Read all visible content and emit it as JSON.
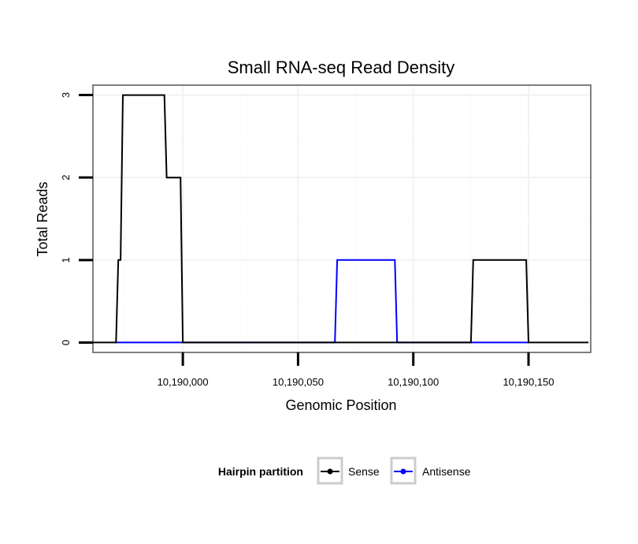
{
  "chart_data": {
    "type": "line",
    "title": "Small RNA-seq Read Density",
    "xlabel": "Genomic Position",
    "ylabel": "Total Reads",
    "xlim": [
      10189961,
      10190177
    ],
    "ylim": [
      -0.12,
      3.12
    ],
    "x_ticks": [
      10190000,
      10190050,
      10190100,
      10190150
    ],
    "x_tick_labels": [
      "10,190,000",
      "10,190,050",
      "10,190,100",
      "10,190,150"
    ],
    "y_ticks": [
      0,
      1,
      2,
      3
    ],
    "y_tick_labels": [
      "0",
      "1",
      "2",
      "3"
    ],
    "grid": true,
    "legend": {
      "title": "Hairpin partition",
      "placement": "bottom",
      "entries": [
        "Sense",
        "Antisense"
      ]
    },
    "series": [
      {
        "name": "Sense",
        "color": "#000000",
        "x": [
          10189961,
          10189971,
          10189972,
          10189973,
          10189974,
          10189992,
          10189993,
          10189999,
          10190000,
          10190125,
          10190126,
          10190149,
          10190150,
          10190176
        ],
        "values": [
          0,
          0,
          1,
          1,
          3,
          3,
          2,
          2,
          0,
          0,
          1,
          1,
          0,
          0
        ]
      },
      {
        "name": "Antisense",
        "color": "#0000ff",
        "x": [
          10189971,
          10190066,
          10190067,
          10190092,
          10190093,
          10190125,
          10190126,
          10190149,
          10190150
        ],
        "values": [
          0,
          0,
          1,
          1,
          0,
          0,
          0,
          0,
          0
        ]
      }
    ]
  }
}
